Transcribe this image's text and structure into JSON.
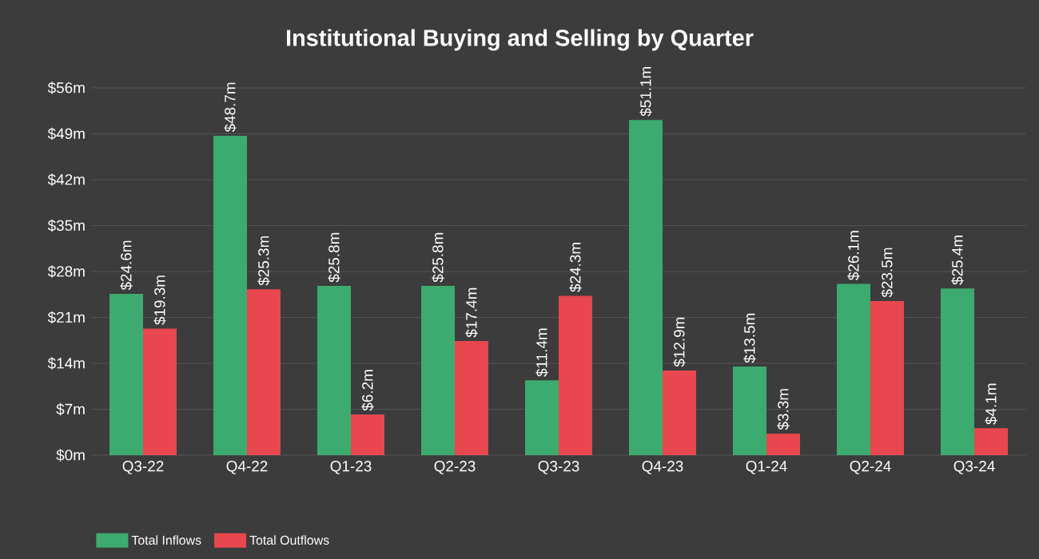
{
  "chart_data": {
    "type": "bar",
    "title": "Institutional Buying and Selling by Quarter",
    "categories": [
      "Q3-22",
      "Q4-22",
      "Q1-23",
      "Q2-23",
      "Q3-23",
      "Q4-23",
      "Q1-24",
      "Q2-24",
      "Q3-24"
    ],
    "series": [
      {
        "name": "Total Inflows",
        "color": "#3dab6f",
        "values": [
          24.6,
          48.7,
          25.8,
          25.8,
          11.4,
          51.1,
          13.5,
          26.1,
          25.4
        ],
        "value_labels": [
          "$24.6m",
          "$48.7m",
          "$25.8m",
          "$25.8m",
          "$11.4m",
          "$51.1m",
          "$13.5m",
          "$26.1m",
          "$25.4m"
        ]
      },
      {
        "name": "Total Outflows",
        "color": "#e8474f",
        "values": [
          19.3,
          25.3,
          6.2,
          17.4,
          24.3,
          12.9,
          3.3,
          23.5,
          4.1
        ],
        "value_labels": [
          "$19.3m",
          "$25.3m",
          "$6.2m",
          "$17.4m",
          "$24.3m",
          "$12.9m",
          "$3.3m",
          "$23.5m",
          "$4.1m"
        ]
      }
    ],
    "ylim": [
      0,
      56
    ],
    "yticks": [
      {
        "value": 0,
        "label": "$0m"
      },
      {
        "value": 7,
        "label": "$7m"
      },
      {
        "value": 14,
        "label": "$14m"
      },
      {
        "value": 21,
        "label": "$21m"
      },
      {
        "value": 28,
        "label": "$28m"
      },
      {
        "value": 35,
        "label": "$35m"
      },
      {
        "value": 42,
        "label": "$42m"
      },
      {
        "value": 49,
        "label": "$49m"
      },
      {
        "value": 56,
        "label": "$56m"
      }
    ],
    "grid": "y",
    "legend": "bottom left"
  }
}
